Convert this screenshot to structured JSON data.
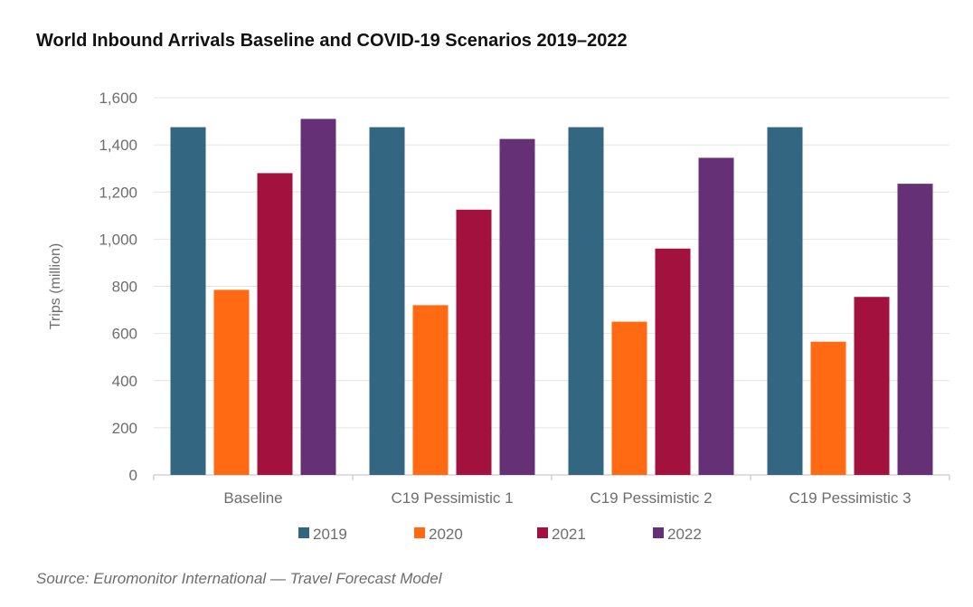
{
  "chart_data": {
    "type": "bar",
    "title": "World Inbound Arrivals Baseline and COVID-19 Scenarios 2019–2022",
    "xlabel": "",
    "ylabel": "Trips (million)",
    "ylim": [
      0,
      1600
    ],
    "yticks": [
      0,
      200,
      400,
      600,
      800,
      1000,
      1200,
      1400,
      1600
    ],
    "ytick_labels": [
      "0",
      "200",
      "400",
      "600",
      "800",
      "1,000",
      "1,200",
      "1,400",
      "1,600"
    ],
    "categories": [
      "Baseline",
      "C19 Pessimistic 1",
      "C19 Pessimistic 2",
      "C19 Pessimistic 3"
    ],
    "series": [
      {
        "name": "2019",
        "color": "#336680",
        "values": [
          1475,
          1475,
          1475,
          1475
        ]
      },
      {
        "name": "2020",
        "color": "#ff6a13",
        "values": [
          785,
          720,
          650,
          565
        ]
      },
      {
        "name": "2021",
        "color": "#a3123f",
        "values": [
          1280,
          1125,
          960,
          755
        ]
      },
      {
        "name": "2022",
        "color": "#653075",
        "values": [
          1510,
          1425,
          1345,
          1235
        ]
      }
    ],
    "grid": true,
    "legend_position": "bottom"
  },
  "footer": {
    "source": "Source: Euromonitor International — Travel Forecast Model"
  }
}
